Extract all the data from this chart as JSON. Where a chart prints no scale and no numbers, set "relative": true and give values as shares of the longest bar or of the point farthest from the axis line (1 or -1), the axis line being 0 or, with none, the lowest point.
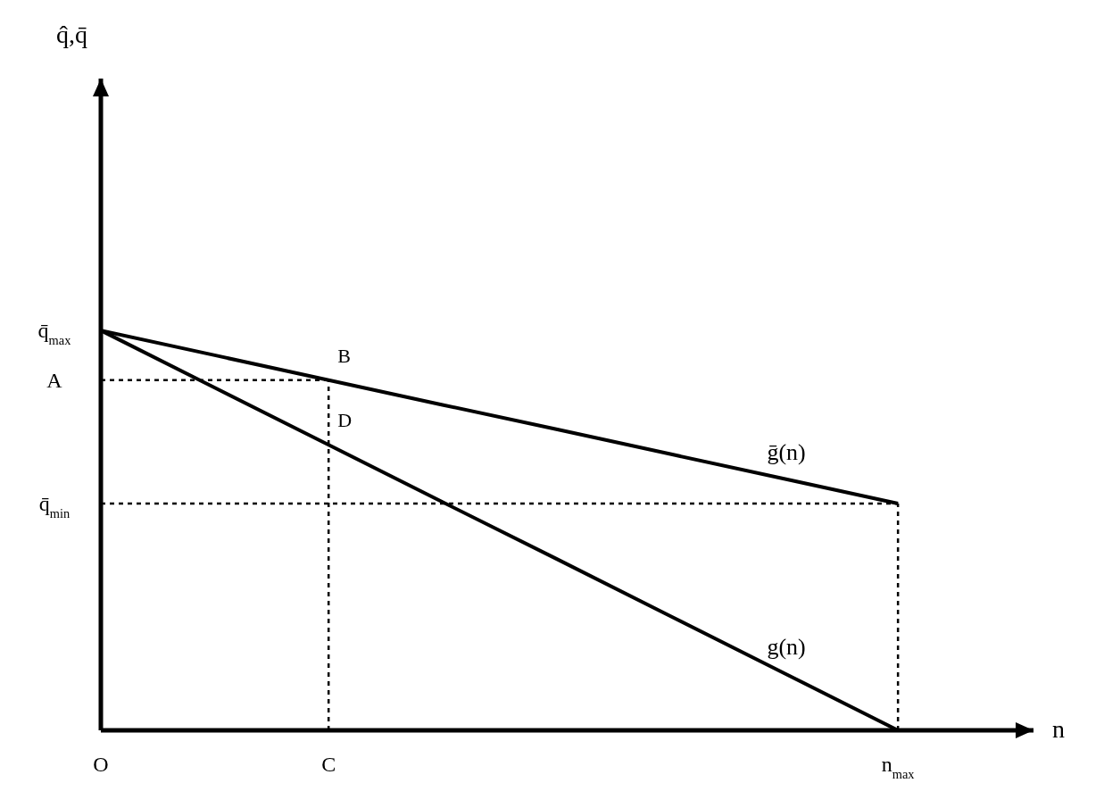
{
  "chart_data": {
    "type": "line",
    "xlabel": "n",
    "relative": true,
    "categories": [
      "O",
      null,
      "C",
      null,
      null,
      null,
      null,
      "n$_{max}$"
    ],
    "series": [
      {
        "name": "ḡ(n)",
        "color": "#000000",
        "values": [
          1,
          0.938,
          0.876,
          0.814,
          0.753,
          0.691,
          0.629,
          0.567
        ]
      },
      {
        "name": "g(n)",
        "color": "#000000",
        "values": [
          1,
          0.857,
          0.714,
          0.571,
          0.429,
          0.286,
          0.143,
          0
        ]
      }
    ],
    "ref_lines": [
      {
        "axis": "y",
        "value": 0.876,
        "label": "A",
        "line_style": "dotted",
        "color": "#000000"
      },
      {
        "axis": "y",
        "value": 0.567,
        "label": "q̄$_{min}$",
        "line_style": "dotted",
        "color": "#000000"
      },
      {
        "axis": "x",
        "value": "C",
        "line_style": "dotted",
        "color": "#000000"
      },
      {
        "axis": "x",
        "value": "n$_{max}$",
        "line_style": "dotted",
        "color": "#000000"
      }
    ],
    "annotations": [
      "q̂,q̄",
      {
        "text": "q̄$_{max}$",
        "x": "O",
        "y": 1
      },
      {
        "text": "B",
        "x": "C",
        "y": 0.876
      },
      {
        "text": "D",
        "x": "C",
        "y": 0.714
      }
    ],
    "line_style": "solid",
    "marker": "none",
    "grid": false,
    "legend": false
  }
}
